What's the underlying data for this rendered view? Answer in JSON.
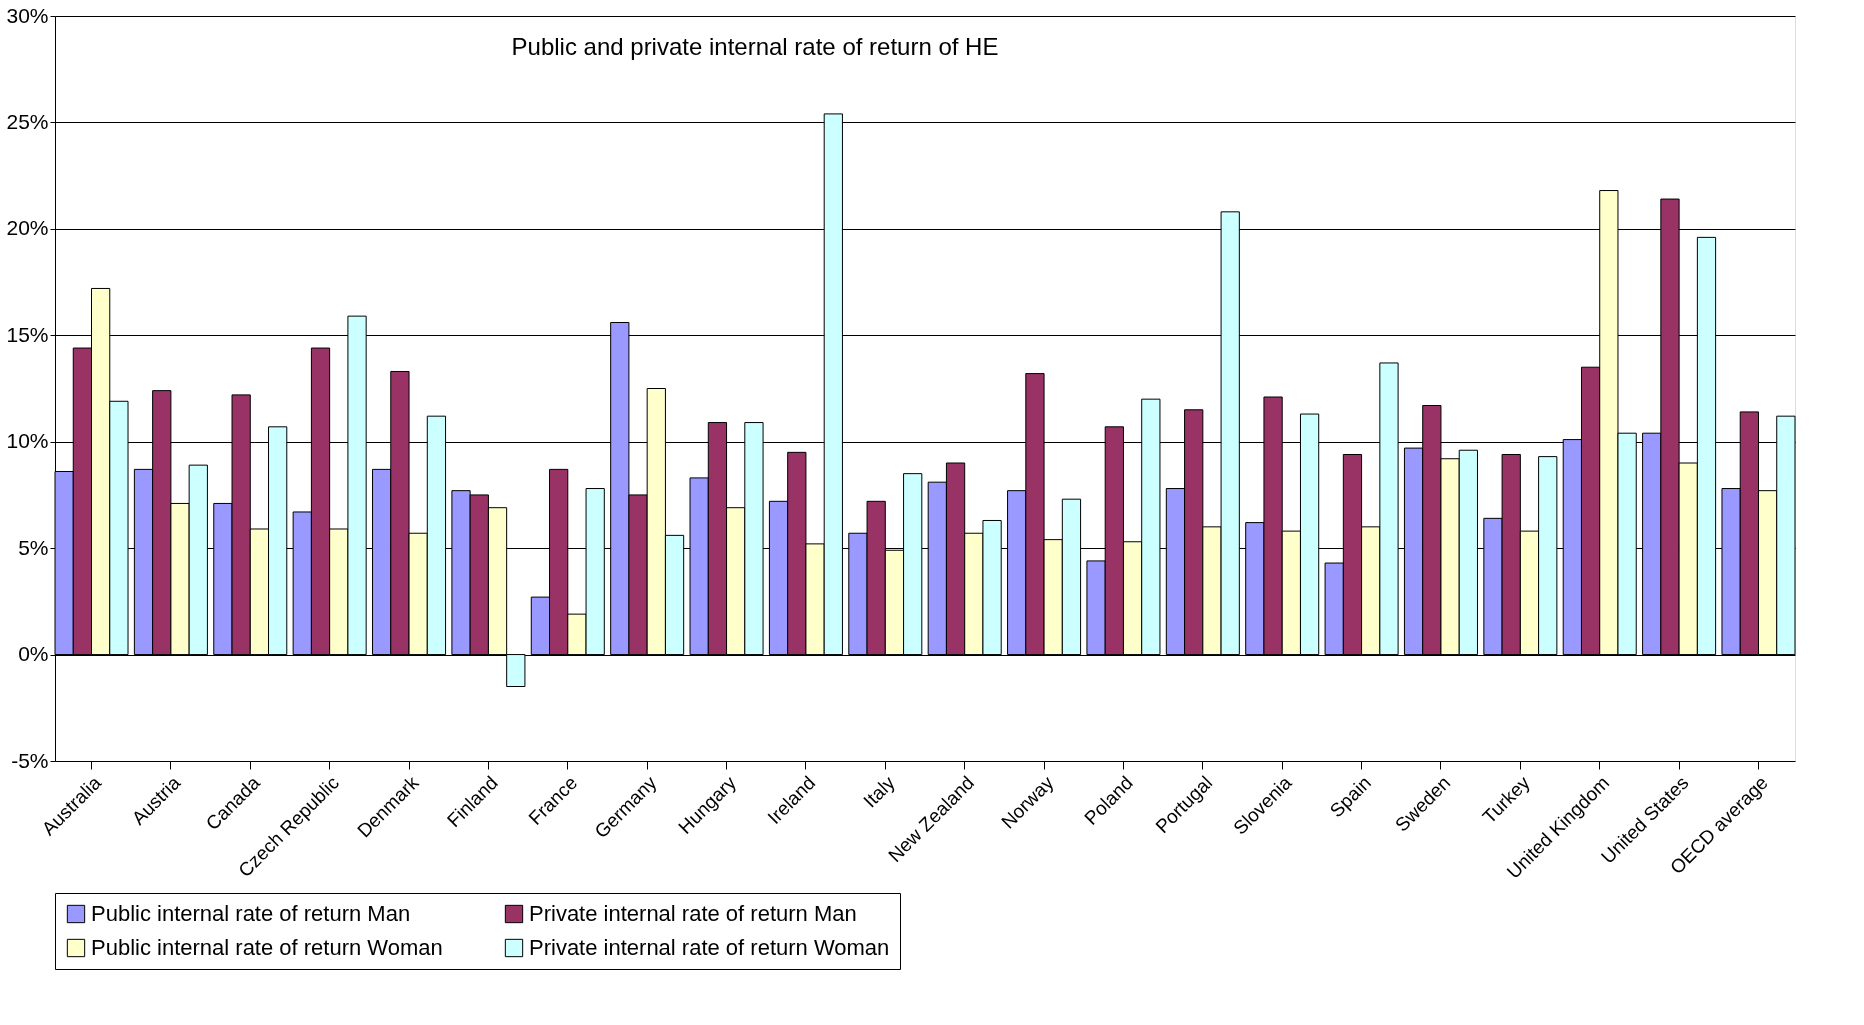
{
  "chart_data": {
    "type": "bar",
    "title": "Public and private internal rate of return of HE",
    "categories": [
      "Australia",
      "Austria",
      "Canada",
      "Czech Republic",
      "Denmark",
      "Finland",
      "France",
      "Germany",
      "Hungary",
      "Ireland",
      "Italy",
      "New Zealand",
      "Norway",
      "Poland",
      "Portugal",
      "Slovenia",
      "Spain",
      "Sweden",
      "Turkey",
      "United Kingdom",
      "United States",
      "OECD average"
    ],
    "series": [
      {
        "name": "Public internal rate of return Man",
        "color": "#9999ff",
        "values": [
          8.6,
          8.7,
          7.1,
          6.7,
          8.7,
          7.7,
          2.7,
          15.6,
          8.3,
          7.2,
          5.7,
          8.1,
          7.7,
          4.4,
          7.8,
          6.2,
          4.3,
          9.7,
          6.4,
          10.1,
          10.4,
          7.8
        ]
      },
      {
        "name": "Private internal rate of return Man",
        "color": "#993366",
        "values": [
          14.4,
          12.4,
          12.2,
          14.4,
          13.3,
          7.5,
          8.7,
          7.5,
          10.9,
          9.5,
          7.2,
          9.0,
          13.2,
          10.7,
          11.5,
          12.1,
          9.4,
          11.7,
          9.4,
          13.5,
          21.4,
          11.4
        ]
      },
      {
        "name": "Public internal rate of return Woman",
        "color": "#ffffcc",
        "values": [
          17.2,
          7.1,
          5.9,
          5.9,
          5.7,
          6.9,
          1.9,
          12.5,
          6.9,
          5.2,
          4.9,
          5.7,
          5.4,
          5.3,
          6.0,
          5.8,
          6.0,
          9.2,
          5.8,
          21.8,
          9.0,
          7.7
        ]
      },
      {
        "name": "Private internal rate of return Woman",
        "color": "#ccffff",
        "values": [
          11.9,
          8.9,
          10.7,
          15.9,
          11.2,
          -1.5,
          7.8,
          5.6,
          10.9,
          25.4,
          8.5,
          6.3,
          7.3,
          12.0,
          20.8,
          11.3,
          13.7,
          9.6,
          9.3,
          10.4,
          19.6,
          11.2
        ]
      }
    ],
    "ylim": [
      -5,
      30
    ],
    "yticks": [
      {
        "value": -5,
        "label": "-5%"
      },
      {
        "value": 0,
        "label": "0%"
      },
      {
        "value": 5,
        "label": "5%"
      },
      {
        "value": 10,
        "label": "10%"
      },
      {
        "value": 15,
        "label": "15%"
      },
      {
        "value": 20,
        "label": "20%"
      },
      {
        "value": 25,
        "label": "25%"
      },
      {
        "value": 30,
        "label": "30%"
      }
    ],
    "grid": "y",
    "legend": "bottom"
  }
}
